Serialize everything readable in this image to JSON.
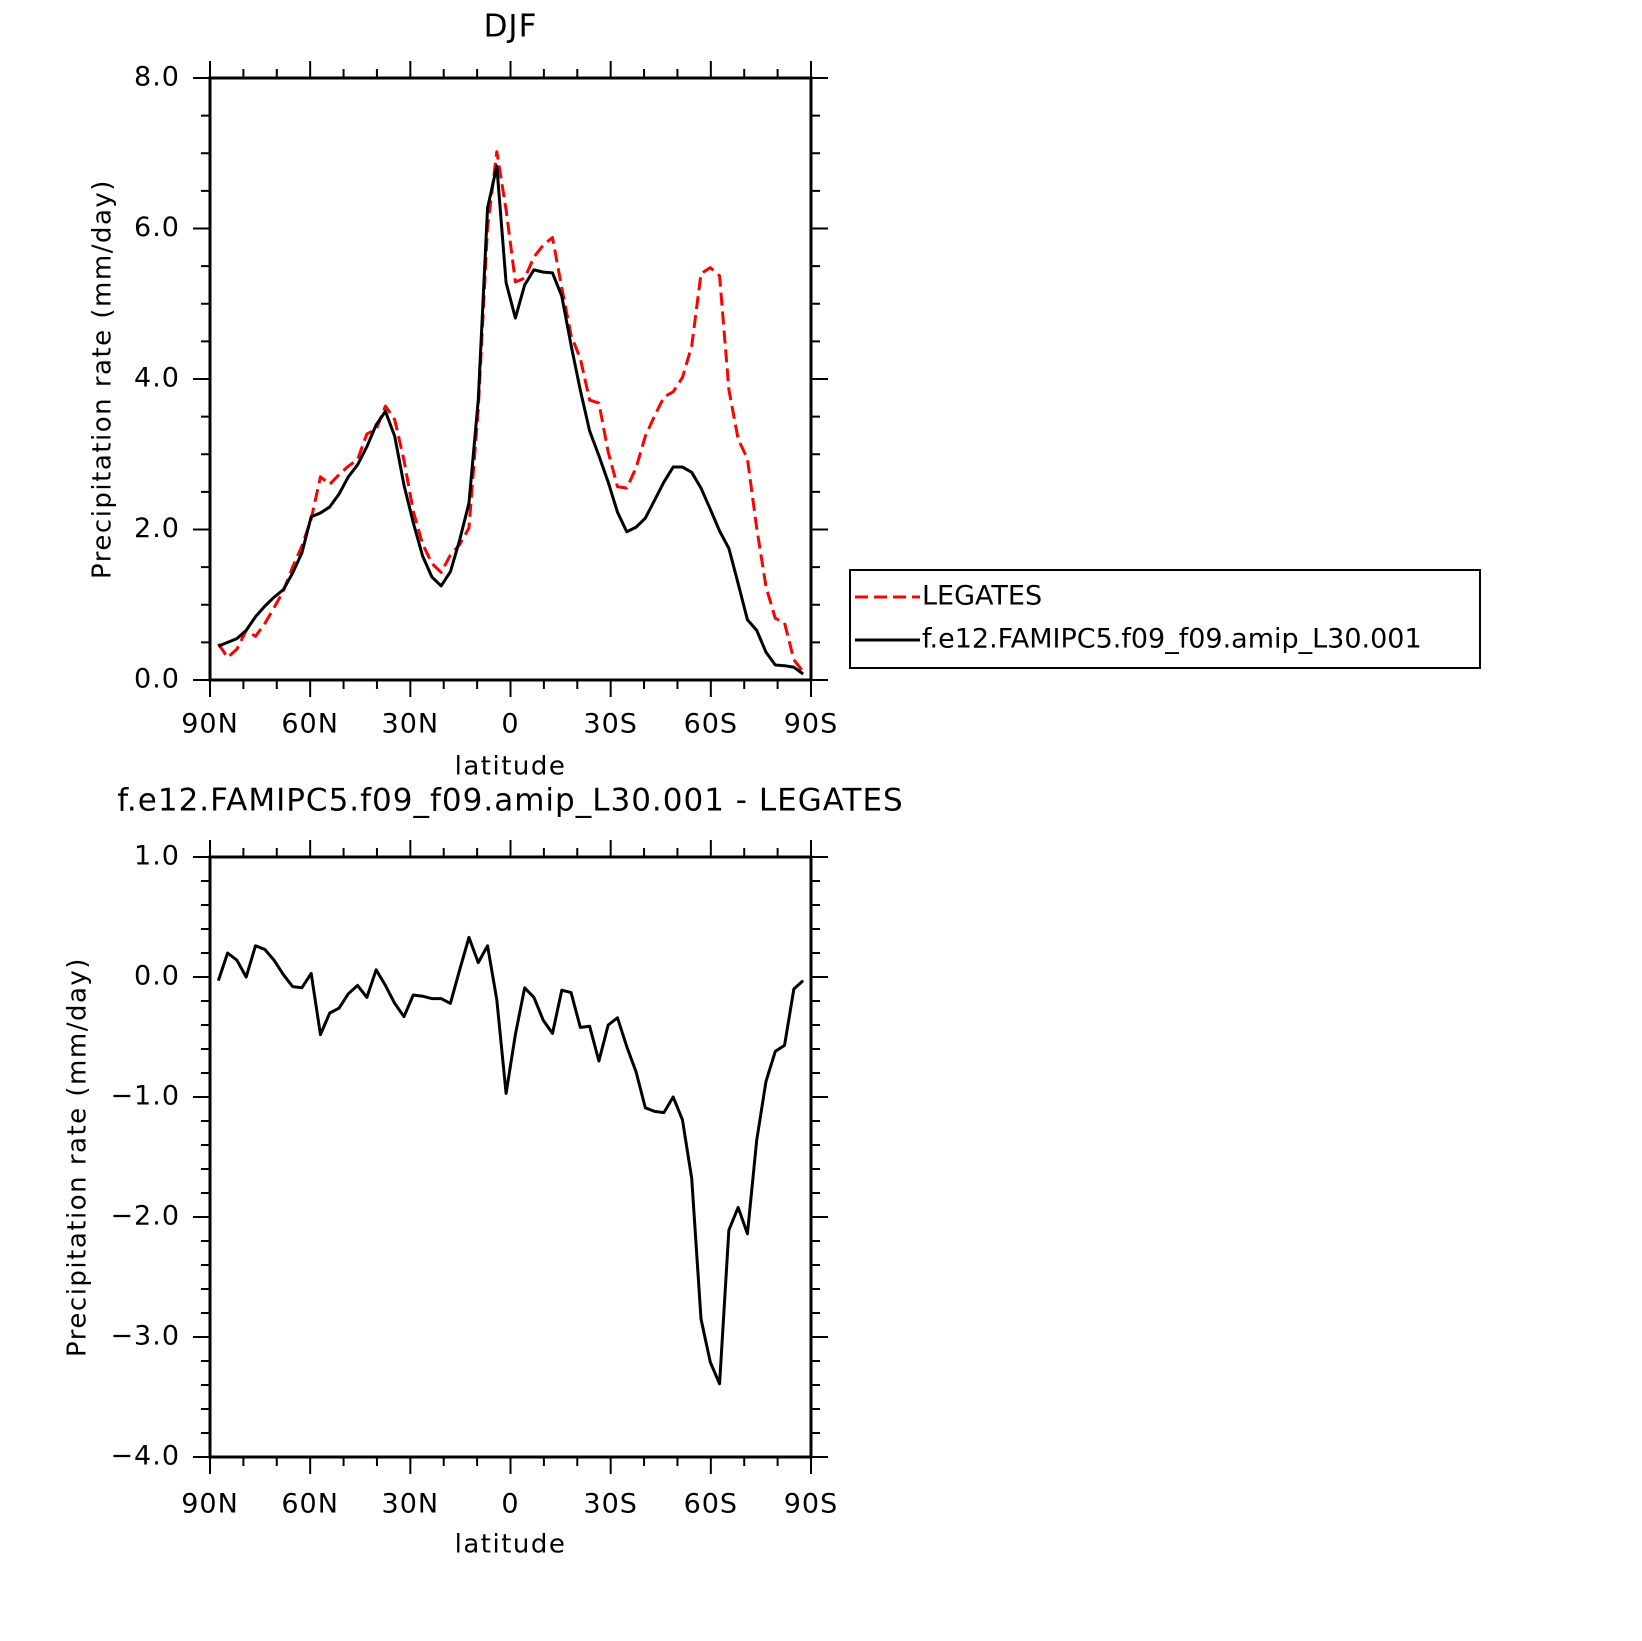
{
  "chart_data": [
    {
      "type": "line",
      "title": "DJF",
      "xlabel": "latitude",
      "ylabel": "Precipitation rate (mm/day)",
      "x": [
        87.5,
        84.72,
        81.94,
        79.16,
        76.38,
        73.6,
        70.82,
        68.04,
        65.26,
        62.48,
        59.7,
        56.92,
        54.14,
        51.36,
        48.58,
        45.8,
        43.02,
        40.24,
        37.46,
        34.68,
        31.9,
        29.12,
        26.34,
        23.56,
        20.78,
        18,
        15.22,
        12.44,
        9.66,
        6.88,
        4.1,
        1.32,
        -1.46,
        -4.24,
        -7.02,
        -9.8,
        -12.58,
        -15.36,
        -18.14,
        -20.92,
        -23.7,
        -26.48,
        -29.26,
        -32.04,
        -34.82,
        -37.6,
        -40.38,
        -43.16,
        -45.94,
        -48.72,
        -51.5,
        -54.28,
        -57.06,
        -59.84,
        -62.62,
        -65.4,
        -68.18,
        -70.96,
        -73.74,
        -76.52,
        -79.3,
        -82.08,
        -84.86,
        -87.64
      ],
      "series": [
        {
          "name": "LEGATES",
          "color": "#ff0000",
          "dash": true,
          "values": [
            0.48,
            0.3,
            0.41,
            0.66,
            0.58,
            0.75,
            0.96,
            1.18,
            1.5,
            1.78,
            2.14,
            2.7,
            2.6,
            2.73,
            2.84,
            2.93,
            3.27,
            3.33,
            3.64,
            3.46,
            2.92,
            2.24,
            1.81,
            1.55,
            1.43,
            1.66,
            1.8,
            2.02,
            3.6,
            6.01,
            7.02,
            6.25,
            5.29,
            5.34,
            5.62,
            5.78,
            5.88,
            5.21,
            4.58,
            4.27,
            3.72,
            3.68,
            3.03,
            2.57,
            2.55,
            2.82,
            3.24,
            3.51,
            3.76,
            3.83,
            4.02,
            4.44,
            5.4,
            5.48,
            5.37,
            3.86,
            3.2,
            2.94,
            2.02,
            1.24,
            0.82,
            0.76,
            0.27,
            0.11
          ]
        },
        {
          "name": "f.e12.FAMIPC5.f09_f09.amip_L30.001",
          "color": "#000000",
          "dash": false,
          "values": [
            0.45,
            0.5,
            0.55,
            0.66,
            0.84,
            0.98,
            1.1,
            1.2,
            1.42,
            1.69,
            2.17,
            2.22,
            2.3,
            2.47,
            2.7,
            2.86,
            3.1,
            3.39,
            3.57,
            3.24,
            2.59,
            2.09,
            1.65,
            1.37,
            1.25,
            1.44,
            1.86,
            2.35,
            3.72,
            6.27,
            6.83,
            5.28,
            4.81,
            5.25,
            5.45,
            5.42,
            5.41,
            5.1,
            4.45,
            3.85,
            3.31,
            2.98,
            2.63,
            2.23,
            1.97,
            2.03,
            2.15,
            2.39,
            2.63,
            2.83,
            2.83,
            2.76,
            2.55,
            2.27,
            1.98,
            1.75,
            1.28,
            0.8,
            0.66,
            0.37,
            0.2,
            0.19,
            0.17,
            0.08
          ]
        }
      ],
      "xlim": [
        90,
        -90
      ],
      "xticks": [
        {
          "value": 90,
          "label": "90N"
        },
        {
          "value": 60,
          "label": "60N"
        },
        {
          "value": 30,
          "label": "30N"
        },
        0,
        {
          "value": -30,
          "label": "30S"
        },
        {
          "value": -60,
          "label": "60S"
        },
        {
          "value": -90,
          "label": "90S"
        }
      ],
      "ylim": [
        0,
        8
      ],
      "yticks": [
        {
          "value": 0,
          "label": "0.0"
        },
        {
          "value": 2,
          "label": "2.0"
        },
        {
          "value": 4,
          "label": "4.0"
        },
        {
          "value": 6,
          "label": "6.0"
        },
        {
          "value": 8,
          "label": "8.0"
        }
      ],
      "legend": "right"
    },
    {
      "type": "line",
      "title": "f.e12.FAMIPC5.f09_f09.amip_L30.001 - LEGATES",
      "xlabel": "latitude",
      "ylabel": "Precipitation rate (mm/day)",
      "x": [
        87.5,
        84.72,
        81.94,
        79.16,
        76.38,
        73.6,
        70.82,
        68.04,
        65.26,
        62.48,
        59.7,
        56.92,
        54.14,
        51.36,
        48.58,
        45.8,
        43.02,
        40.24,
        37.46,
        34.68,
        31.9,
        29.12,
        26.34,
        23.56,
        20.78,
        18,
        15.22,
        12.44,
        9.66,
        6.88,
        4.1,
        1.32,
        -1.46,
        -4.24,
        -7.02,
        -9.8,
        -12.58,
        -15.36,
        -18.14,
        -20.92,
        -23.7,
        -26.48,
        -29.26,
        -32.04,
        -34.82,
        -37.6,
        -40.38,
        -43.16,
        -45.94,
        -48.72,
        -51.5,
        -54.28,
        -57.06,
        -59.84,
        -62.62,
        -65.4,
        -68.18,
        -70.96,
        -73.74,
        -76.52,
        -79.3,
        -82.08,
        -84.86,
        -87.64
      ],
      "series": [
        {
          "color": "#000000",
          "dash": false,
          "values": [
            -0.03,
            0.2,
            0.14,
            0.0,
            0.26,
            0.23,
            0.14,
            0.02,
            -0.08,
            -0.09,
            0.03,
            -0.48,
            -0.3,
            -0.26,
            -0.14,
            -0.07,
            -0.17,
            0.06,
            -0.07,
            -0.22,
            -0.33,
            -0.15,
            -0.16,
            -0.18,
            -0.18,
            -0.22,
            0.06,
            0.33,
            0.12,
            0.26,
            -0.19,
            -0.97,
            -0.48,
            -0.09,
            -0.17,
            -0.36,
            -0.47,
            -0.11,
            -0.13,
            -0.42,
            -0.41,
            -0.7,
            -0.4,
            -0.34,
            -0.58,
            -0.79,
            -1.09,
            -1.12,
            -1.13,
            -1.0,
            -1.19,
            -1.68,
            -2.85,
            -3.21,
            -3.39,
            -2.11,
            -1.92,
            -2.14,
            -1.36,
            -0.87,
            -0.62,
            -0.57,
            -0.1,
            -0.03
          ]
        }
      ],
      "xlim": [
        90,
        -90
      ],
      "xticks": [
        {
          "value": 90,
          "label": "90N"
        },
        {
          "value": 60,
          "label": "60N"
        },
        {
          "value": 30,
          "label": "30N"
        },
        0,
        {
          "value": -30,
          "label": "30S"
        },
        {
          "value": -60,
          "label": "60S"
        },
        {
          "value": -90,
          "label": "90S"
        }
      ],
      "ylim": [
        -4,
        1
      ],
      "yticks": [
        {
          "value": -4,
          "label": "−4.0"
        },
        {
          "value": -3,
          "label": "−3.0"
        },
        {
          "value": -2,
          "label": "−2.0"
        },
        {
          "value": -1,
          "label": "−1.0"
        },
        {
          "value": 0,
          "label": "0.0"
        },
        {
          "value": 1,
          "label": "1.0"
        }
      ]
    }
  ]
}
